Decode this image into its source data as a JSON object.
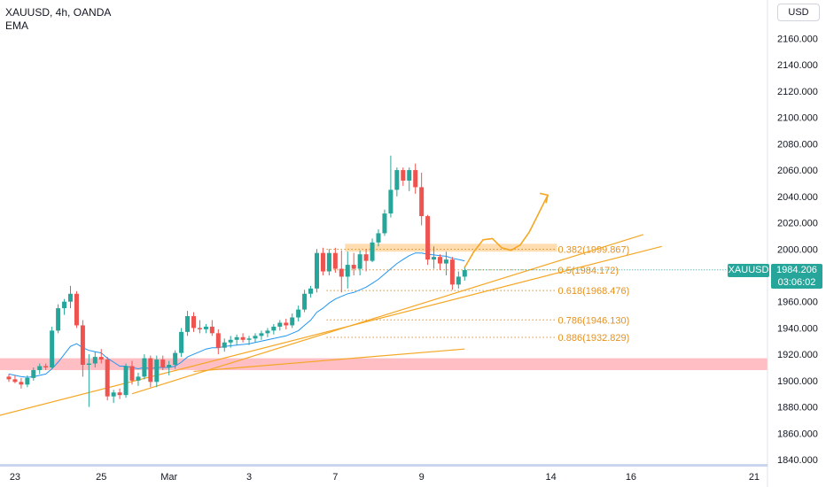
{
  "header": {
    "symbol": "XAUUSD, 4h, OANDA",
    "indicator": "EMA",
    "currency": "USD"
  },
  "price_tag": {
    "symbol": "XAUUSD",
    "price": "1984.206",
    "countdown": "03:06:02"
  },
  "colors": {
    "up": "#26a69a",
    "down": "#ef5350",
    "ema": "#2196f3",
    "trend": "#f5a623",
    "fib": "#e8901a",
    "support_zone": "#ffb3b8",
    "resistance_zone": "#ffd7a3"
  },
  "chart_data": {
    "type": "candlestick",
    "title": "",
    "xlabel": "",
    "ylabel": "",
    "ylim": [
      1835,
      2175
    ],
    "y_ticks": [
      "2160.000",
      "2140.000",
      "2120.000",
      "2100.000",
      "2080.000",
      "2060.000",
      "2040.000",
      "2020.000",
      "2000.000",
      "1980.000",
      "1960.000",
      "1940.000",
      "1920.000",
      "1900.000",
      "1880.000",
      "1860.000",
      "1840.000"
    ],
    "x_ticks": [
      {
        "label": "23",
        "i": 1
      },
      {
        "label": "25",
        "i": 15
      },
      {
        "label": "Mar",
        "i": 26
      },
      {
        "label": "3",
        "i": 39
      },
      {
        "label": "7",
        "i": 53
      },
      {
        "label": "9",
        "i": 67
      },
      {
        "label": "14",
        "i": 88
      },
      {
        "label": "16",
        "i": 101
      },
      {
        "label": "21",
        "i": 121
      }
    ],
    "candles": [
      {
        "o": 1903,
        "h": 1905,
        "l": 1899,
        "c": 1901
      },
      {
        "o": 1901,
        "h": 1904,
        "l": 1898,
        "c": 1899
      },
      {
        "o": 1899,
        "h": 1902,
        "l": 1894,
        "c": 1897
      },
      {
        "o": 1897,
        "h": 1904,
        "l": 1895,
        "c": 1902
      },
      {
        "o": 1902,
        "h": 1910,
        "l": 1900,
        "c": 1908
      },
      {
        "o": 1908,
        "h": 1913,
        "l": 1905,
        "c": 1911
      },
      {
        "o": 1911,
        "h": 1913,
        "l": 1908,
        "c": 1910
      },
      {
        "o": 1910,
        "h": 1941,
        "l": 1909,
        "c": 1938
      },
      {
        "o": 1938,
        "h": 1958,
        "l": 1936,
        "c": 1955
      },
      {
        "o": 1955,
        "h": 1962,
        "l": 1950,
        "c": 1960
      },
      {
        "o": 1960,
        "h": 1972,
        "l": 1955,
        "c": 1966
      },
      {
        "o": 1966,
        "h": 1968,
        "l": 1940,
        "c": 1942
      },
      {
        "o": 1942,
        "h": 1946,
        "l": 1903,
        "c": 1912
      },
      {
        "o": 1912,
        "h": 1920,
        "l": 1880,
        "c": 1913
      },
      {
        "o": 1913,
        "h": 1922,
        "l": 1910,
        "c": 1918
      },
      {
        "o": 1918,
        "h": 1924,
        "l": 1913,
        "c": 1916
      },
      {
        "o": 1916,
        "h": 1918,
        "l": 1885,
        "c": 1888
      },
      {
        "o": 1888,
        "h": 1893,
        "l": 1883,
        "c": 1891
      },
      {
        "o": 1891,
        "h": 1894,
        "l": 1886,
        "c": 1889
      },
      {
        "o": 1889,
        "h": 1913,
        "l": 1887,
        "c": 1911
      },
      {
        "o": 1911,
        "h": 1915,
        "l": 1897,
        "c": 1900
      },
      {
        "o": 1900,
        "h": 1906,
        "l": 1896,
        "c": 1903
      },
      {
        "o": 1903,
        "h": 1920,
        "l": 1901,
        "c": 1917
      },
      {
        "o": 1917,
        "h": 1919,
        "l": 1895,
        "c": 1899
      },
      {
        "o": 1899,
        "h": 1919,
        "l": 1895,
        "c": 1916
      },
      {
        "o": 1916,
        "h": 1919,
        "l": 1908,
        "c": 1910
      },
      {
        "o": 1910,
        "h": 1915,
        "l": 1904,
        "c": 1912
      },
      {
        "o": 1912,
        "h": 1923,
        "l": 1909,
        "c": 1921
      },
      {
        "o": 1921,
        "h": 1940,
        "l": 1918,
        "c": 1937
      },
      {
        "o": 1937,
        "h": 1953,
        "l": 1934,
        "c": 1949
      },
      {
        "o": 1949,
        "h": 1952,
        "l": 1937,
        "c": 1940
      },
      {
        "o": 1940,
        "h": 1946,
        "l": 1936,
        "c": 1939
      },
      {
        "o": 1939,
        "h": 1943,
        "l": 1936,
        "c": 1941
      },
      {
        "o": 1941,
        "h": 1946,
        "l": 1934,
        "c": 1936
      },
      {
        "o": 1936,
        "h": 1939,
        "l": 1920,
        "c": 1925
      },
      {
        "o": 1925,
        "h": 1932,
        "l": 1922,
        "c": 1929
      },
      {
        "o": 1929,
        "h": 1934,
        "l": 1925,
        "c": 1931
      },
      {
        "o": 1931,
        "h": 1935,
        "l": 1927,
        "c": 1933
      },
      {
        "o": 1933,
        "h": 1936,
        "l": 1929,
        "c": 1931
      },
      {
        "o": 1931,
        "h": 1934,
        "l": 1927,
        "c": 1932
      },
      {
        "o": 1932,
        "h": 1936,
        "l": 1929,
        "c": 1934
      },
      {
        "o": 1934,
        "h": 1938,
        "l": 1931,
        "c": 1936
      },
      {
        "o": 1936,
        "h": 1940,
        "l": 1933,
        "c": 1938
      },
      {
        "o": 1938,
        "h": 1943,
        "l": 1935,
        "c": 1941
      },
      {
        "o": 1941,
        "h": 1946,
        "l": 1938,
        "c": 1944
      },
      {
        "o": 1944,
        "h": 1947,
        "l": 1939,
        "c": 1942
      },
      {
        "o": 1942,
        "h": 1951,
        "l": 1940,
        "c": 1948
      },
      {
        "o": 1948,
        "h": 1957,
        "l": 1945,
        "c": 1954
      },
      {
        "o": 1954,
        "h": 1969,
        "l": 1952,
        "c": 1966
      },
      {
        "o": 1966,
        "h": 1972,
        "l": 1963,
        "c": 1970
      },
      {
        "o": 1970,
        "h": 2000,
        "l": 1967,
        "c": 1997
      },
      {
        "o": 1997,
        "h": 2001,
        "l": 1980,
        "c": 1983
      },
      {
        "o": 1983,
        "h": 2000,
        "l": 1980,
        "c": 1997
      },
      {
        "o": 1997,
        "h": 2001,
        "l": 1982,
        "c": 1985
      },
      {
        "o": 1985,
        "h": 1999,
        "l": 1967,
        "c": 1979
      },
      {
        "o": 1979,
        "h": 1998,
        "l": 1970,
        "c": 1988
      },
      {
        "o": 1988,
        "h": 1997,
        "l": 1980,
        "c": 1985
      },
      {
        "o": 1985,
        "h": 1999,
        "l": 1980,
        "c": 1996
      },
      {
        "o": 1996,
        "h": 2000,
        "l": 1983,
        "c": 1991
      },
      {
        "o": 1991,
        "h": 2008,
        "l": 1990,
        "c": 2005
      },
      {
        "o": 2005,
        "h": 2015,
        "l": 2002,
        "c": 2012
      },
      {
        "o": 2012,
        "h": 2030,
        "l": 2010,
        "c": 2027
      },
      {
        "o": 2027,
        "h": 2071,
        "l": 2024,
        "c": 2045
      },
      {
        "o": 2045,
        "h": 2062,
        "l": 2040,
        "c": 2060
      },
      {
        "o": 2060,
        "h": 2062,
        "l": 2048,
        "c": 2052
      },
      {
        "o": 2052,
        "h": 2062,
        "l": 2044,
        "c": 2060
      },
      {
        "o": 2060,
        "h": 2065,
        "l": 2042,
        "c": 2047
      },
      {
        "o": 2047,
        "h": 2058,
        "l": 2018,
        "c": 2025
      },
      {
        "o": 2025,
        "h": 2026,
        "l": 1988,
        "c": 1992
      },
      {
        "o": 1992,
        "h": 2002,
        "l": 1985,
        "c": 1994
      },
      {
        "o": 1994,
        "h": 1996,
        "l": 1984,
        "c": 1989
      },
      {
        "o": 1989,
        "h": 1998,
        "l": 1980,
        "c": 1992
      },
      {
        "o": 1992,
        "h": 1994,
        "l": 1969,
        "c": 1973
      },
      {
        "o": 1973,
        "h": 1983,
        "l": 1970,
        "c": 1979
      },
      {
        "o": 1979,
        "h": 1987,
        "l": 1976,
        "c": 1984
      }
    ],
    "ema": [
      1905,
      1904,
      1903,
      1902.5,
      1903,
      1904,
      1905,
      1909,
      1914,
      1920,
      1926,
      1928,
      1925,
      1923,
      1922,
      1921,
      1917,
      1914,
      1911,
      1911,
      1910,
      1909,
      1910,
      1909,
      1910,
      1910,
      1910,
      1911,
      1914,
      1918,
      1920,
      1922,
      1924,
      1925,
      1925,
      1926,
      1926.5,
      1927,
      1927.5,
      1928,
      1929,
      1930,
      1931,
      1932,
      1933,
      1934,
      1936,
      1938,
      1942,
      1946,
      1952,
      1955,
      1959,
      1962,
      1964,
      1966,
      1967,
      1969,
      1971,
      1974,
      1977,
      1981,
      1985,
      1989,
      1992,
      1995,
      1997,
      1997,
      1996,
      1995.5,
      1995,
      1994.5,
      1993,
      1992,
      1991
    ],
    "fib_levels": [
      {
        "label": "0.382(1999.867)",
        "value": 1999.867
      },
      {
        "label": "0.5(1984.172)",
        "value": 1984.172
      },
      {
        "label": "0.618(1968.476)",
        "value": 1968.476
      },
      {
        "label": "0.786(1946.130)",
        "value": 1946.13
      },
      {
        "label": "0.886(1932.829)",
        "value": 1932.829
      }
    ],
    "fib_start_i": 51,
    "fib_end_i": 89,
    "support_zone": {
      "low": 1908,
      "high": 1917
    },
    "resistance_zone": {
      "low": 1998,
      "high": 2004,
      "from_i": 55,
      "to_i": 89
    },
    "trendlines": [
      {
        "i1": -2,
        "p1": 1873,
        "i2": 106,
        "p2": 2002
      },
      {
        "i1": 20,
        "p1": 1890,
        "i2": 103,
        "p2": 2011
      },
      {
        "i1": 30,
        "p1": 1907,
        "i2": 74,
        "p2": 1924
      }
    ],
    "projection": [
      {
        "i": 74,
        "p": 1986
      },
      {
        "i": 75.5,
        "p": 1998
      },
      {
        "i": 77,
        "p": 2007
      },
      {
        "i": 78.5,
        "p": 2008
      },
      {
        "i": 80,
        "p": 2001
      },
      {
        "i": 81.5,
        "p": 1999
      },
      {
        "i": 83,
        "p": 2003
      },
      {
        "i": 84.5,
        "p": 2013
      },
      {
        "i": 86,
        "p": 2027
      },
      {
        "i": 87.5,
        "p": 2041
      }
    ],
    "last_price": 1984.206
  }
}
